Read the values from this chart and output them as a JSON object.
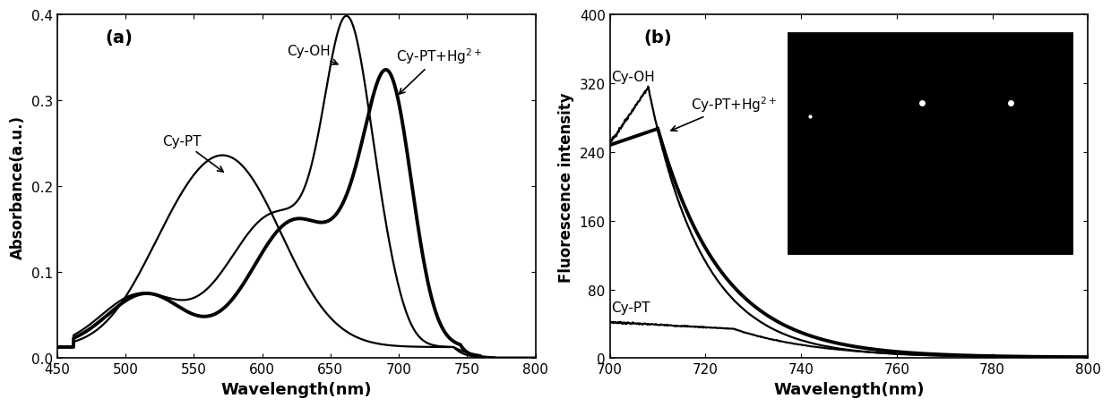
{
  "panel_a": {
    "title": "(a)",
    "xlabel": "Wavelength(nm)",
    "ylabel": "Absorbance(a.u.)",
    "xlim": [
      450,
      800
    ],
    "ylim": [
      0.0,
      0.4
    ],
    "yticks": [
      0.0,
      0.1,
      0.2,
      0.3,
      0.4
    ],
    "xticks": [
      450,
      500,
      550,
      600,
      650,
      700,
      750,
      800
    ]
  },
  "panel_b": {
    "title": "(b)",
    "xlabel": "Wavelength(nm)",
    "ylabel": "Fluorescence intensity",
    "xlim": [
      700,
      800
    ],
    "ylim": [
      0,
      400
    ],
    "yticks": [
      0,
      80,
      160,
      240,
      320,
      400
    ],
    "xticks": [
      700,
      720,
      740,
      760,
      780,
      800
    ]
  },
  "background_color": "#ffffff",
  "line_color": "#000000"
}
